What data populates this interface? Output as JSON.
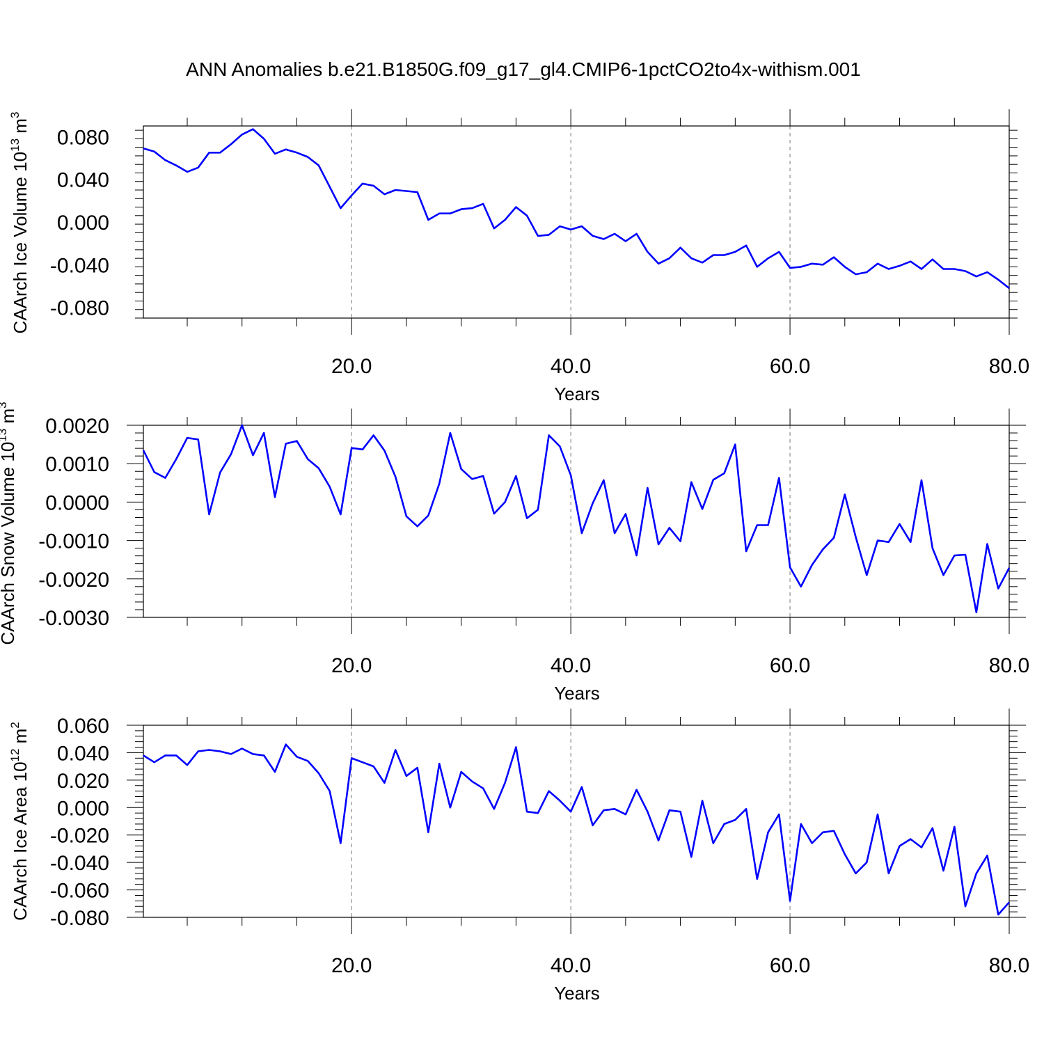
{
  "page_title": "ANN Anomalies b.e21.B1850G.f09_g17_gl4.CMIP6-1pctCO2to4x-withism.001",
  "colors": {
    "line": "#0000ff",
    "axis": "#000000",
    "grid": "#777777",
    "background": "#ffffff"
  },
  "chart_data": [
    {
      "type": "line",
      "title": "",
      "xlabel": "Years",
      "ylabel": {
        "text": "CAArch Ice Volume 10",
        "exp": "13",
        "unit": "m",
        "unit_exp": "3"
      },
      "xlim": [
        1,
        80
      ],
      "ylim": [
        -0.09,
        0.09
      ],
      "xticks": [
        "20.0",
        "40.0",
        "60.0",
        "80.0"
      ],
      "yticks": [
        "0.080",
        "0.040",
        "0.000",
        "-0.040",
        "-0.080"
      ],
      "grid": "vertical dashed at x ticks",
      "legend": "none",
      "x": [
        1,
        2,
        3,
        4,
        5,
        6,
        7,
        8,
        9,
        10,
        11,
        12,
        13,
        14,
        15,
        16,
        17,
        18,
        19,
        20,
        21,
        22,
        23,
        24,
        25,
        26,
        27,
        28,
        29,
        30,
        31,
        32,
        33,
        34,
        35,
        36,
        37,
        38,
        39,
        40,
        41,
        42,
        43,
        44,
        45,
        46,
        47,
        48,
        49,
        50,
        51,
        52,
        53,
        54,
        55,
        56,
        57,
        58,
        59,
        60,
        61,
        62,
        63,
        64,
        65,
        66,
        67,
        68,
        69,
        70,
        71,
        72,
        73,
        74,
        75,
        76,
        77,
        78,
        79,
        80
      ],
      "series": [
        {
          "values": [
            0.069,
            0.066,
            0.058,
            0.053,
            0.047,
            0.051,
            0.065,
            0.065,
            0.073,
            0.082,
            0.087,
            0.078,
            0.064,
            0.068,
            0.065,
            0.061,
            0.053,
            0.033,
            0.013,
            0.025,
            0.036,
            0.034,
            0.026,
            0.03,
            0.029,
            0.028,
            0.002,
            0.008,
            0.008,
            0.012,
            0.013,
            0.017,
            -0.006,
            0.002,
            0.014,
            0.006,
            -0.013,
            -0.012,
            -0.004,
            -0.007,
            -0.004,
            -0.013,
            -0.016,
            -0.011,
            -0.018,
            -0.011,
            -0.028,
            -0.039,
            -0.034,
            -0.024,
            -0.034,
            -0.038,
            -0.031,
            -0.031,
            -0.028,
            -0.022,
            -0.042,
            -0.034,
            -0.028,
            -0.043,
            -0.042,
            -0.039,
            -0.04,
            -0.033,
            -0.042,
            -0.049,
            -0.047,
            -0.039,
            -0.044,
            -0.041,
            -0.037,
            -0.044,
            -0.035,
            -0.044,
            -0.044,
            -0.046,
            -0.051,
            -0.047,
            -0.054,
            -0.062
          ]
        }
      ]
    },
    {
      "type": "line",
      "title": "",
      "xlabel": "Years",
      "ylabel": {
        "text": "CAArch Snow Volume 10",
        "exp": "13",
        "unit": "m",
        "unit_exp": "3"
      },
      "xlim": [
        1,
        80
      ],
      "ylim": [
        -0.003,
        0.002
      ],
      "xticks": [
        "20.0",
        "40.0",
        "60.0",
        "80.0"
      ],
      "yticks": [
        "0.0020",
        "0.0010",
        "0.0000",
        "-0.0010",
        "-0.0020",
        "-0.0030"
      ],
      "grid": "vertical dashed at x ticks",
      "legend": "none",
      "x": [
        1,
        2,
        3,
        4,
        5,
        6,
        7,
        8,
        9,
        10,
        11,
        12,
        13,
        14,
        15,
        16,
        17,
        18,
        19,
        20,
        21,
        22,
        23,
        24,
        25,
        26,
        27,
        28,
        29,
        30,
        31,
        32,
        33,
        34,
        35,
        36,
        37,
        38,
        39,
        40,
        41,
        42,
        43,
        44,
        45,
        46,
        47,
        48,
        49,
        50,
        51,
        52,
        53,
        54,
        55,
        56,
        57,
        58,
        59,
        60,
        61,
        62,
        63,
        64,
        65,
        66,
        67,
        68,
        69,
        70,
        71,
        72,
        73,
        74,
        75,
        76,
        77,
        78,
        79,
        80
      ],
      "series": [
        {
          "values": [
            0.00135,
            0.00078,
            0.00063,
            0.00112,
            0.00167,
            0.00163,
            -0.00032,
            0.00077,
            0.00125,
            0.002,
            0.00122,
            0.0018,
            0.00013,
            0.00152,
            0.00159,
            0.00112,
            0.00088,
            0.0004,
            -0.00032,
            0.00141,
            0.00137,
            0.00174,
            0.00134,
            0.00066,
            -0.00037,
            -0.00063,
            -0.00035,
            0.00048,
            0.0018,
            0.00086,
            0.0006,
            0.00068,
            -0.0003,
            0.0,
            0.00068,
            -0.00042,
            -0.0002,
            0.00174,
            0.00145,
            0.0007,
            -0.00081,
            -3e-05,
            0.00057,
            -0.00081,
            -0.00031,
            -0.00139,
            0.00037,
            -0.0011,
            -0.00067,
            -0.00102,
            0.00052,
            -0.00018,
            0.00058,
            0.00075,
            0.0015,
            -0.00128,
            -0.0006,
            -0.0006,
            0.00063,
            -0.0017,
            -0.0022,
            -0.00164,
            -0.00123,
            -0.00093,
            0.0002,
            -0.00091,
            -0.0019,
            -0.001,
            -0.00104,
            -0.00057,
            -0.00104,
            0.00057,
            -0.0012,
            -0.0019,
            -0.00139,
            -0.00137,
            -0.00287,
            -0.00109,
            -0.00225,
            -0.00171
          ]
        }
      ]
    },
    {
      "type": "line",
      "title": "",
      "xlabel": "Years",
      "ylabel": {
        "text": "CAArch Ice Area 10",
        "exp": "12",
        "unit": "m",
        "unit_exp": "2"
      },
      "xlim": [
        1,
        80
      ],
      "ylim": [
        -0.08,
        0.06
      ],
      "xticks": [
        "20.0",
        "40.0",
        "60.0",
        "80.0"
      ],
      "yticks": [
        "0.060",
        "0.040",
        "0.020",
        "0.000",
        "-0.020",
        "-0.040",
        "-0.060",
        "-0.080"
      ],
      "grid": "vertical dashed at x ticks",
      "legend": "none",
      "x": [
        1,
        2,
        3,
        4,
        5,
        6,
        7,
        8,
        9,
        10,
        11,
        12,
        13,
        14,
        15,
        16,
        17,
        18,
        19,
        20,
        21,
        22,
        23,
        24,
        25,
        26,
        27,
        28,
        29,
        30,
        31,
        32,
        33,
        34,
        35,
        36,
        37,
        38,
        39,
        40,
        41,
        42,
        43,
        44,
        45,
        46,
        47,
        48,
        49,
        50,
        51,
        52,
        53,
        54,
        55,
        56,
        57,
        58,
        59,
        60,
        61,
        62,
        63,
        64,
        65,
        66,
        67,
        68,
        69,
        70,
        71,
        72,
        73,
        74,
        75,
        76,
        77,
        78,
        79,
        80
      ],
      "series": [
        {
          "values": [
            0.038,
            0.033,
            0.038,
            0.038,
            0.031,
            0.041,
            0.042,
            0.041,
            0.039,
            0.043,
            0.039,
            0.038,
            0.026,
            0.046,
            0.037,
            0.034,
            0.025,
            0.012,
            -0.026,
            0.036,
            0.033,
            0.03,
            0.018,
            0.042,
            0.023,
            0.029,
            -0.018,
            0.032,
            0.0,
            0.026,
            0.019,
            0.014,
            -0.001,
            0.018,
            0.044,
            -0.003,
            -0.004,
            0.012,
            0.005,
            -0.003,
            0.015,
            -0.013,
            -0.002,
            -0.001,
            -0.005,
            0.013,
            -0.003,
            -0.024,
            -0.002,
            -0.003,
            -0.036,
            0.005,
            -0.026,
            -0.012,
            -0.009,
            -0.001,
            -0.052,
            -0.018,
            -0.005,
            -0.068,
            -0.012,
            -0.026,
            -0.018,
            -0.017,
            -0.034,
            -0.048,
            -0.04,
            -0.005,
            -0.048,
            -0.028,
            -0.023,
            -0.029,
            -0.015,
            -0.046,
            -0.014,
            -0.072,
            -0.048,
            -0.035,
            -0.078,
            -0.069
          ]
        }
      ]
    }
  ]
}
